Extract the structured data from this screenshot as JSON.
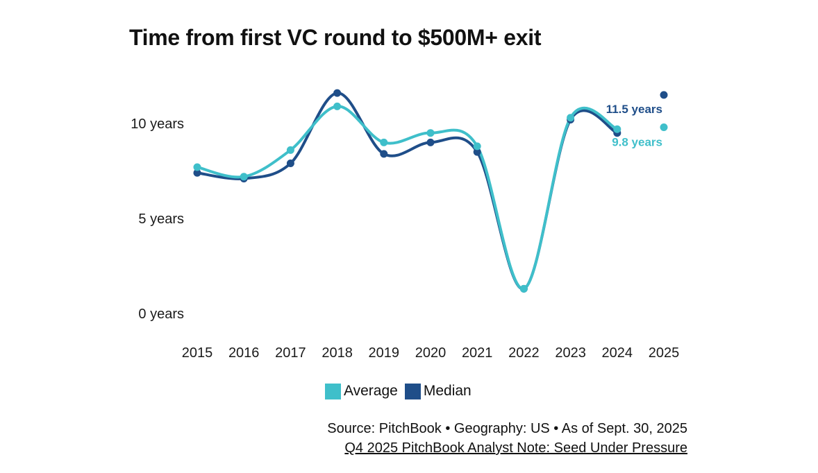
{
  "chart_data": {
    "type": "line",
    "title": "Time from first VC round to $500M+ exit",
    "x": [
      "2015",
      "2016",
      "2017",
      "2018",
      "2019",
      "2020",
      "2021",
      "2022",
      "2023",
      "2024",
      "2025"
    ],
    "ylim": [
      0,
      12.2
    ],
    "yticks": [
      0,
      5,
      10
    ],
    "ytick_labels": [
      "0 years",
      "5 years",
      "10 years"
    ],
    "series": [
      {
        "name": "Average",
        "color": "#3fbfca",
        "values": [
          7.7,
          7.2,
          8.6,
          10.9,
          9.0,
          9.5,
          8.8,
          1.3,
          10.3,
          9.7,
          9.8
        ]
      },
      {
        "name": "Median",
        "color": "#1f4e89",
        "values": [
          7.4,
          7.1,
          7.9,
          11.6,
          8.4,
          9.0,
          8.5,
          1.3,
          10.2,
          9.5,
          11.5
        ]
      }
    ],
    "end_labels": [
      {
        "series": "Median",
        "text": "11.5 years"
      },
      {
        "series": "Average",
        "text": "9.8 years"
      }
    ],
    "legend_placement": "bottom-center",
    "grid": false
  },
  "footer": {
    "source": "Source: PitchBook • Geography: US • As of Sept. 30, 2025",
    "link": "Q4 2025 PitchBook Analyst Note: Seed Under Pressure"
  }
}
